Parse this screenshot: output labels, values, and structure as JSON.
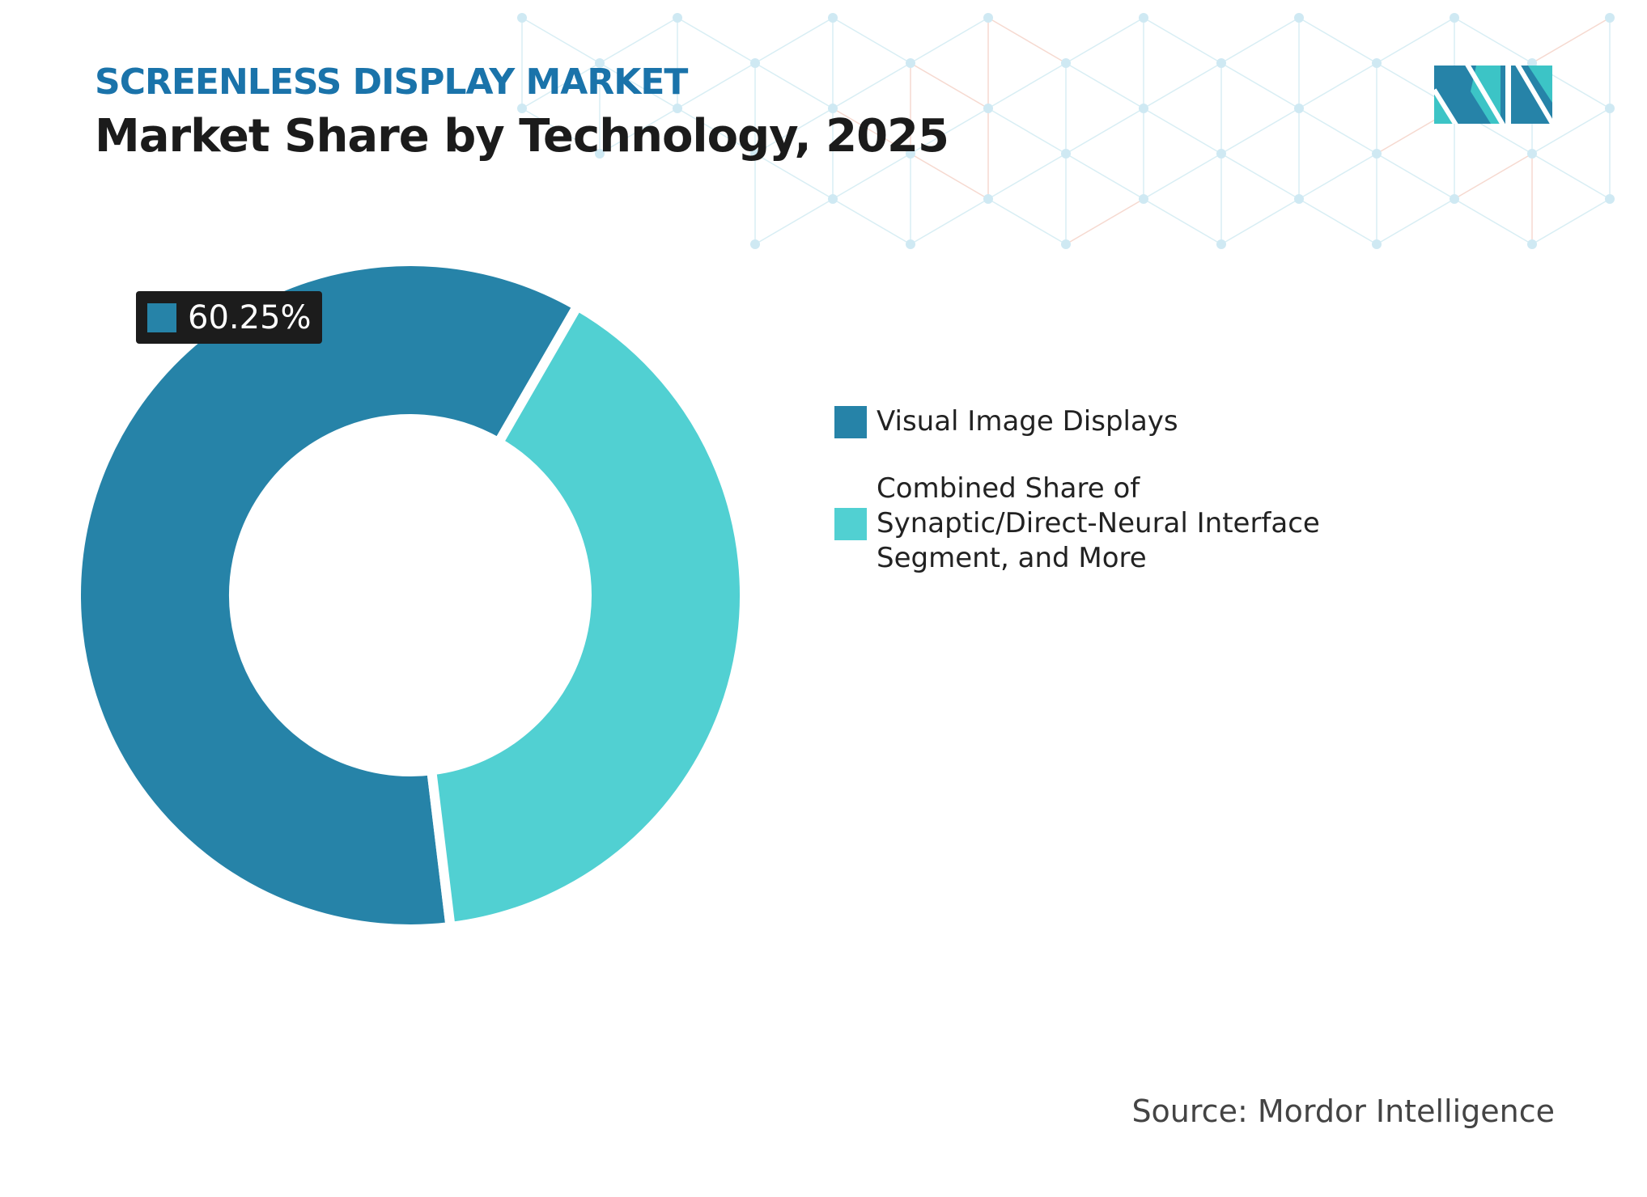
{
  "header": {
    "kicker": "SCREENLESS DISPLAY MARKET",
    "title": "Market Share by Technology, 2025"
  },
  "colors": {
    "accent": "#1a73aa",
    "series1": "#2683a8",
    "series2": "#51d0d2",
    "callout_bg": "#1c1c1c"
  },
  "logo_icon": "mordor-intelligence-logo",
  "chart_data": {
    "type": "pie",
    "variant": "donut",
    "title": "Market Share by Technology, 2025",
    "series": [
      {
        "name": "Visual Image Displays",
        "value": 60.25,
        "color": "#2683a8"
      },
      {
        "name": "Combined Share of Synaptic/Direct-Neural Interface Segment, and More",
        "value": 39.75,
        "color": "#51d0d2"
      }
    ],
    "data_labels": [
      "60.25%"
    ],
    "legend_position": "right",
    "unit": "%"
  },
  "footer": {
    "source": "Source: Mordor Intelligence"
  }
}
